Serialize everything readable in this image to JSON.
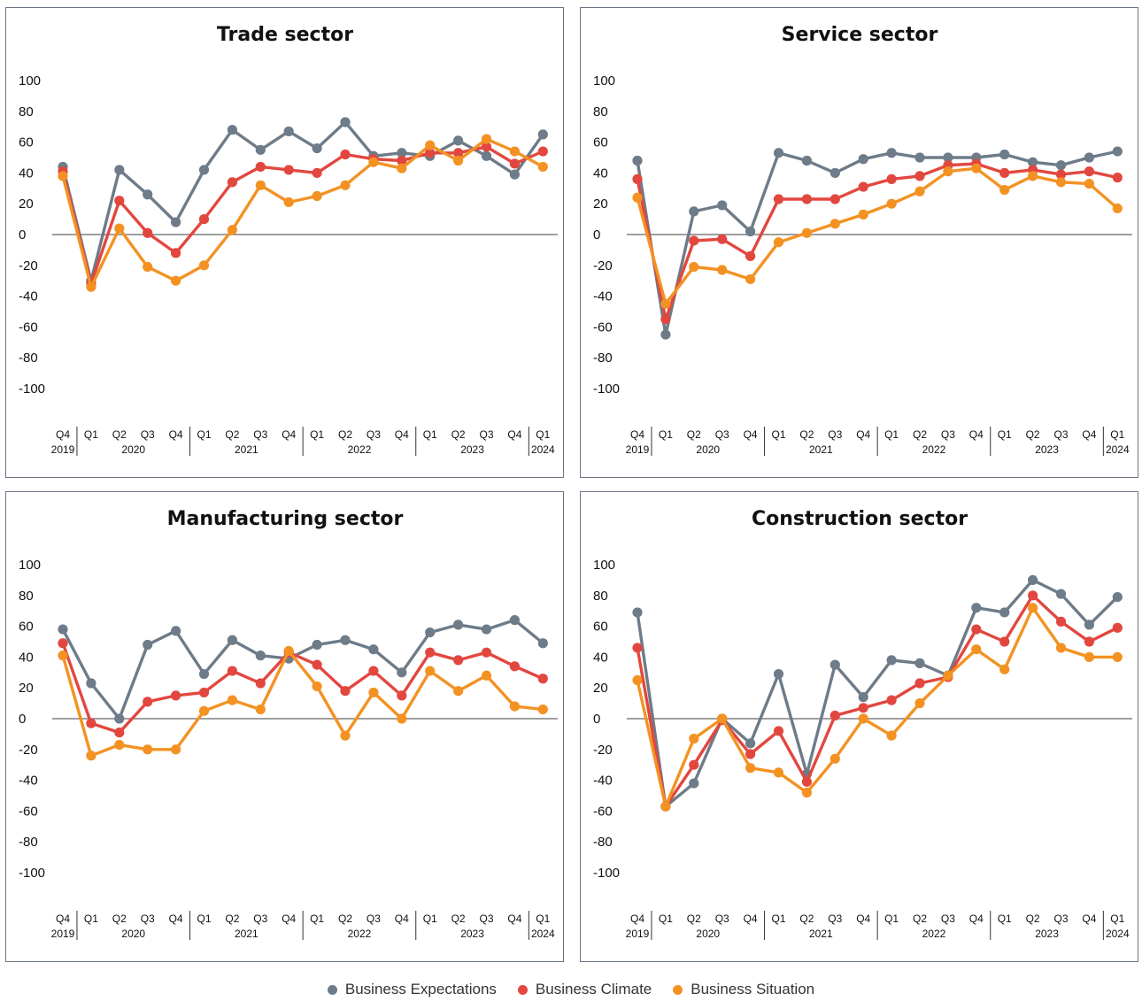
{
  "chart_data": [
    {
      "type": "line",
      "title": "Trade sector",
      "ylim": [
        -100,
        100
      ],
      "yticks": [
        "100",
        "80",
        "60",
        "40",
        "20",
        "0",
        "-20",
        "-40",
        "-60",
        "-80",
        "-100"
      ],
      "quarters": [
        "Q4",
        "Q1",
        "Q2",
        "Q3",
        "Q4",
        "Q1",
        "Q2",
        "Q3",
        "Q4",
        "Q1",
        "Q2",
        "Q3",
        "Q4",
        "Q1",
        "Q2",
        "Q3",
        "Q4",
        "Q1"
      ],
      "years": [
        "2019",
        "2020",
        "2021",
        "2022",
        "2023",
        "2024"
      ],
      "series": [
        {
          "name": "Business Expectations",
          "color": "#6e7b88",
          "values": [
            44,
            -30,
            42,
            26,
            8,
            42,
            68,
            55,
            67,
            56,
            73,
            51,
            53,
            51,
            61,
            51,
            39,
            65
          ]
        },
        {
          "name": "Business Climate",
          "color": "#e2473f",
          "values": [
            41,
            -32,
            22,
            1,
            -12,
            10,
            34,
            44,
            42,
            40,
            52,
            49,
            48,
            53,
            53,
            57,
            46,
            54
          ]
        },
        {
          "name": "Business Situation",
          "color": "#f39223",
          "values": [
            38,
            -34,
            4,
            -21,
            -30,
            -20,
            3,
            32,
            21,
            25,
            32,
            47,
            43,
            58,
            48,
            62,
            54,
            44
          ]
        }
      ]
    },
    {
      "type": "line",
      "title": "Service sector",
      "ylim": [
        -100,
        100
      ],
      "yticks": [
        "100",
        "80",
        "60",
        "40",
        "20",
        "0",
        "-20",
        "-40",
        "-60",
        "-80",
        "-100"
      ],
      "quarters": [
        "Q4",
        "Q1",
        "Q2",
        "Q3",
        "Q4",
        "Q1",
        "Q2",
        "Q3",
        "Q4",
        "Q1",
        "Q2",
        "Q3",
        "Q4",
        "Q1",
        "Q2",
        "Q3",
        "Q4",
        "Q1"
      ],
      "years": [
        "2019",
        "2020",
        "2021",
        "2022",
        "2023",
        "2024"
      ],
      "series": [
        {
          "name": "Business Expectations",
          "color": "#6e7b88",
          "values": [
            48,
            -65,
            15,
            19,
            2,
            53,
            48,
            40,
            49,
            53,
            50,
            50,
            50,
            52,
            47,
            45,
            50,
            54
          ]
        },
        {
          "name": "Business Climate",
          "color": "#e2473f",
          "values": [
            36,
            -55,
            -4,
            -3,
            -14,
            23,
            23,
            23,
            31,
            36,
            38,
            45,
            46,
            40,
            42,
            39,
            41,
            37
          ]
        },
        {
          "name": "Business Situation",
          "color": "#f39223",
          "values": [
            24,
            -45,
            -21,
            -23,
            -29,
            -5,
            1,
            7,
            13,
            20,
            28,
            41,
            43,
            29,
            38,
            34,
            33,
            17
          ]
        }
      ]
    },
    {
      "type": "line",
      "title": "Manufacturing sector",
      "ylim": [
        -100,
        100
      ],
      "yticks": [
        "100",
        "80",
        "60",
        "40",
        "20",
        "0",
        "-20",
        "-40",
        "-60",
        "-80",
        "-100"
      ],
      "quarters": [
        "Q4",
        "Q1",
        "Q2",
        "Q3",
        "Q4",
        "Q1",
        "Q2",
        "Q3",
        "Q4",
        "Q1",
        "Q2",
        "Q3",
        "Q4",
        "Q1",
        "Q2",
        "Q3",
        "Q4",
        "Q1"
      ],
      "years": [
        "2019",
        "2020",
        "2021",
        "2022",
        "2023",
        "2024"
      ],
      "series": [
        {
          "name": "Business Expectations",
          "color": "#6e7b88",
          "values": [
            58,
            23,
            0,
            48,
            57,
            29,
            51,
            41,
            39,
            48,
            51,
            45,
            30,
            56,
            61,
            58,
            64,
            49
          ]
        },
        {
          "name": "Business Climate",
          "color": "#e2473f",
          "values": [
            49,
            -3,
            -9,
            11,
            15,
            17,
            31,
            23,
            43,
            35,
            18,
            31,
            15,
            43,
            38,
            43,
            34,
            26
          ]
        },
        {
          "name": "Business Situation",
          "color": "#f39223",
          "values": [
            41,
            -24,
            -17,
            -20,
            -20,
            5,
            12,
            6,
            44,
            21,
            -11,
            17,
            0,
            31,
            18,
            28,
            8,
            6
          ]
        }
      ]
    },
    {
      "type": "line",
      "title": "Construction sector",
      "ylim": [
        -100,
        100
      ],
      "yticks": [
        "100",
        "80",
        "60",
        "40",
        "20",
        "0",
        "-20",
        "-40",
        "-60",
        "-80",
        "-100"
      ],
      "quarters": [
        "Q4",
        "Q1",
        "Q2",
        "Q3",
        "Q4",
        "Q1",
        "Q2",
        "Q3",
        "Q4",
        "Q1",
        "Q2",
        "Q3",
        "Q4",
        "Q1",
        "Q2",
        "Q3",
        "Q4",
        "Q1"
      ],
      "years": [
        "2019",
        "2020",
        "2021",
        "2022",
        "2023",
        "2024"
      ],
      "series": [
        {
          "name": "Business Expectations",
          "color": "#6e7b88",
          "values": [
            69,
            -57,
            -42,
            0,
            -16,
            29,
            -36,
            35,
            14,
            38,
            36,
            28,
            72,
            69,
            90,
            81,
            61,
            79
          ]
        },
        {
          "name": "Business Climate",
          "color": "#e2473f",
          "values": [
            46,
            -57,
            -30,
            -1,
            -23,
            -8,
            -41,
            2,
            7,
            12,
            23,
            27,
            58,
            50,
            80,
            63,
            50,
            59
          ]
        },
        {
          "name": "Business Situation",
          "color": "#f39223",
          "values": [
            25,
            -57,
            -13,
            0,
            -32,
            -35,
            -48,
            -26,
            0,
            -11,
            10,
            28,
            45,
            32,
            72,
            46,
            40,
            40
          ]
        }
      ]
    }
  ],
  "legend": [
    {
      "label": "Business Expectations",
      "color": "#6e7b88"
    },
    {
      "label": "Business Climate",
      "color": "#e2473f"
    },
    {
      "label": "Business Situation",
      "color": "#f39223"
    }
  ]
}
